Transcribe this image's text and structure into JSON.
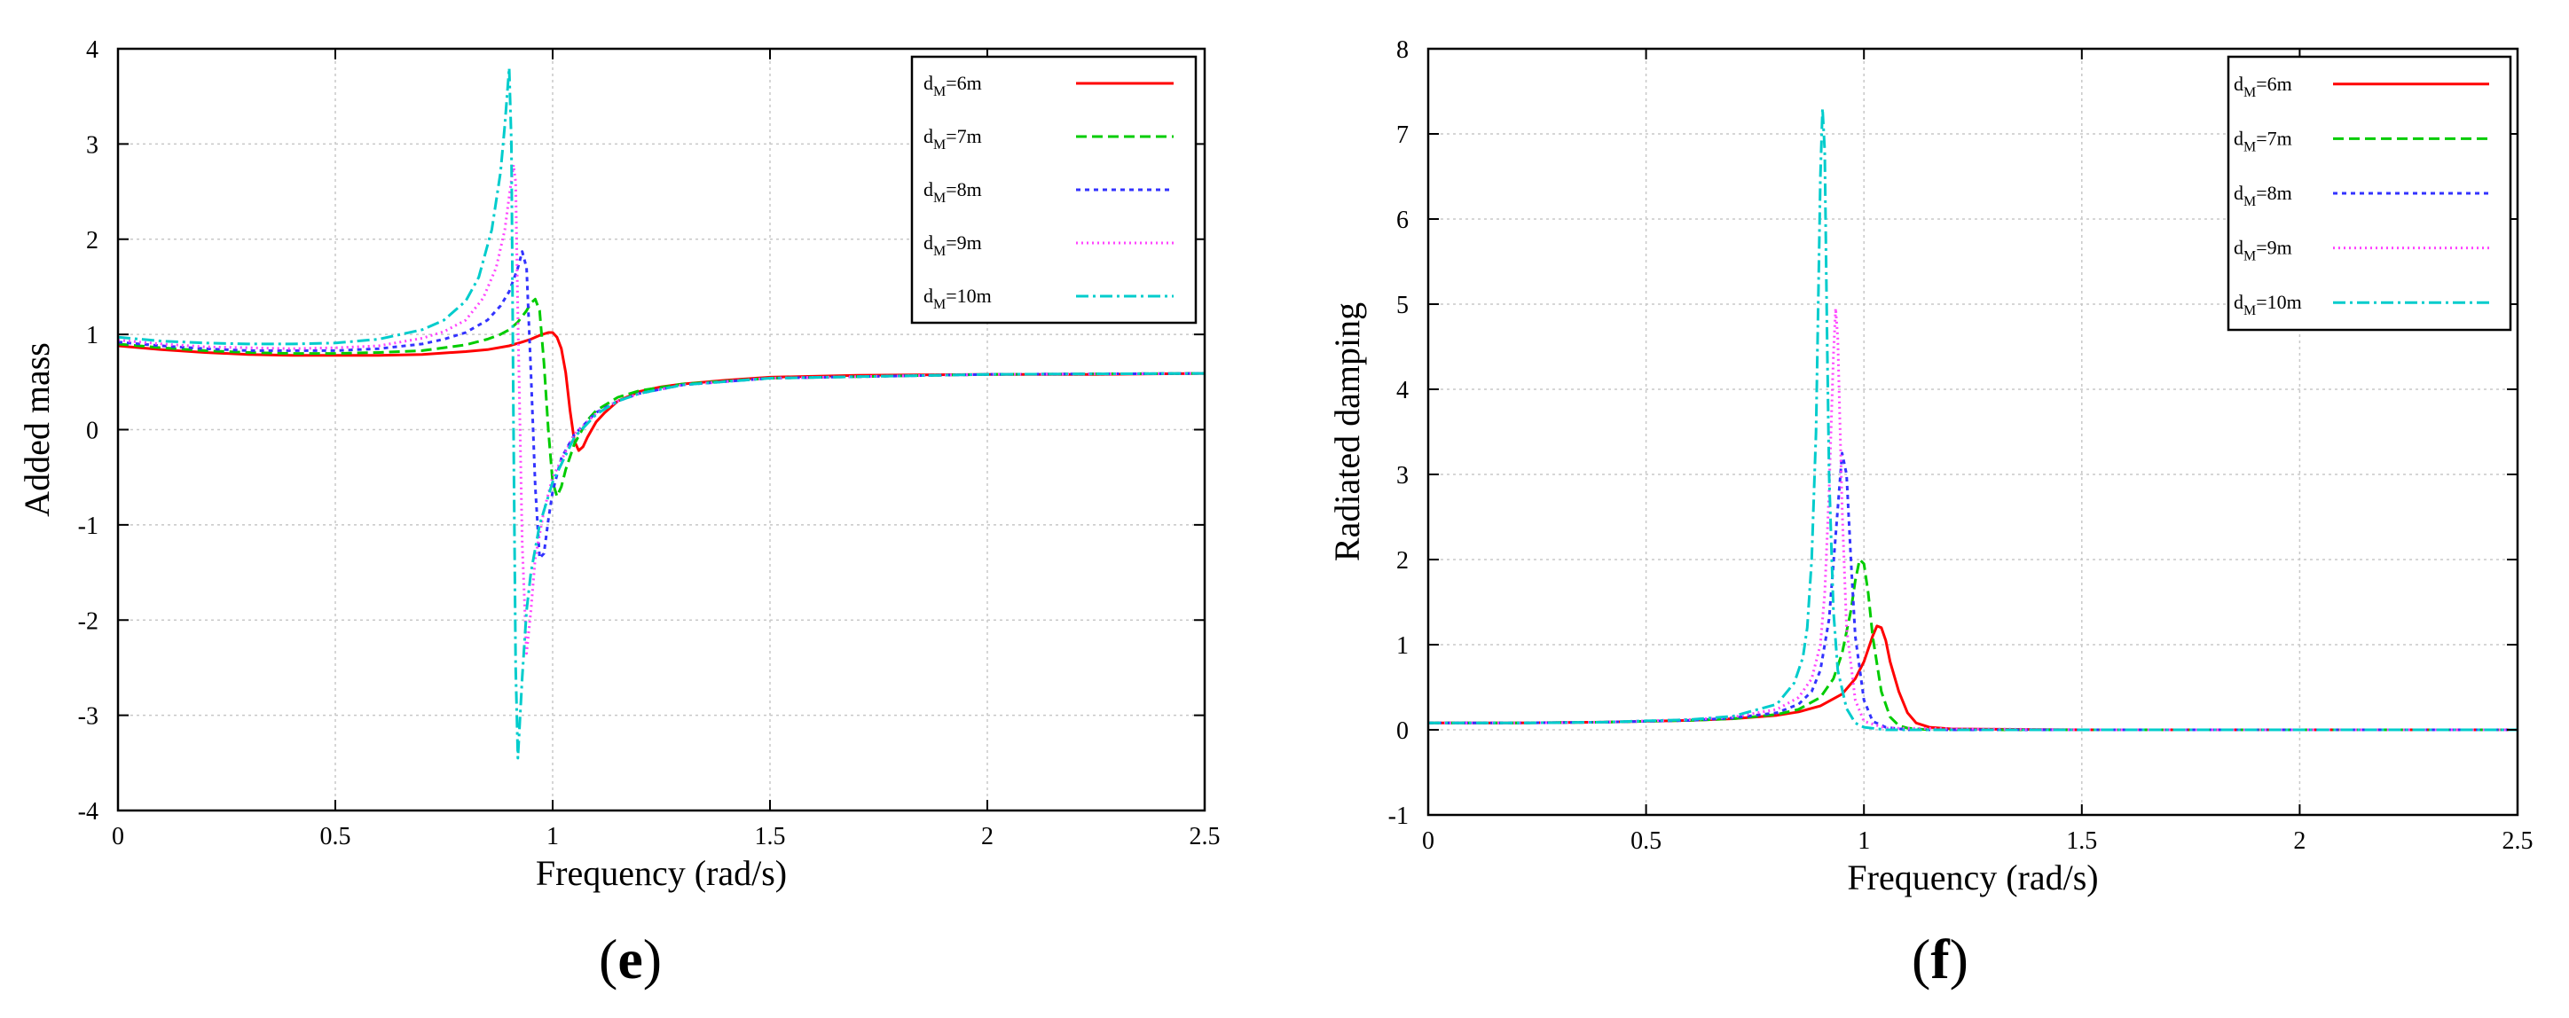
{
  "chart_data": [
    {
      "type": "line",
      "ylabel": "Added mass",
      "xlabel": "Frequency (rad/s)",
      "xlim": [
        0,
        2.5
      ],
      "ylim": [
        -4,
        4
      ],
      "xticks": [
        "0",
        "0.5",
        "1",
        "1.5",
        "2",
        "2.5"
      ],
      "yticks": [
        "-4",
        "-3",
        "-2",
        "-1",
        "0",
        "1",
        "2",
        "3",
        "4"
      ],
      "grid": true,
      "legend_position": "top-right",
      "panel_label": "e",
      "series": [
        {
          "name": "dM=6m",
          "name_main": "d",
          "name_sub": "M",
          "name_rest": "=6m",
          "color": "#ff0000",
          "dash": "",
          "x": [
            0,
            0.1,
            0.2,
            0.3,
            0.4,
            0.5,
            0.6,
            0.7,
            0.8,
            0.85,
            0.9,
            0.93,
            0.95,
            0.97,
            0.99,
            1.0,
            1.01,
            1.02,
            1.03,
            1.04,
            1.05,
            1.06,
            1.07,
            1.08,
            1.1,
            1.12,
            1.15,
            1.2,
            1.25,
            1.3,
            1.4,
            1.5,
            1.7,
            2.0,
            2.25,
            2.5
          ],
          "y": [
            0.88,
            0.84,
            0.81,
            0.79,
            0.78,
            0.78,
            0.78,
            0.79,
            0.82,
            0.84,
            0.88,
            0.92,
            0.95,
            0.99,
            1.02,
            1.02,
            0.97,
            0.85,
            0.6,
            0.2,
            -0.12,
            -0.22,
            -0.18,
            -0.08,
            0.08,
            0.18,
            0.3,
            0.4,
            0.45,
            0.48,
            0.52,
            0.55,
            0.57,
            0.58,
            0.58,
            0.59
          ]
        },
        {
          "name": "dM=7m",
          "name_main": "d",
          "name_sub": "M",
          "name_rest": "=7m",
          "color": "#00cc00",
          "dash": "12,6",
          "x": [
            0,
            0.1,
            0.2,
            0.3,
            0.4,
            0.5,
            0.6,
            0.7,
            0.8,
            0.85,
            0.88,
            0.9,
            0.92,
            0.94,
            0.95,
            0.96,
            0.97,
            0.98,
            0.99,
            1.0,
            1.01,
            1.02,
            1.03,
            1.05,
            1.08,
            1.1,
            1.15,
            1.2,
            1.3,
            1.5,
            2.0,
            2.5
          ],
          "y": [
            0.9,
            0.86,
            0.83,
            0.81,
            0.8,
            0.8,
            0.81,
            0.83,
            0.89,
            0.95,
            1.0,
            1.05,
            1.13,
            1.25,
            1.33,
            1.37,
            1.25,
            0.7,
            0.0,
            -0.55,
            -0.7,
            -0.6,
            -0.42,
            -0.15,
            0.1,
            0.2,
            0.34,
            0.41,
            0.48,
            0.54,
            0.58,
            0.59
          ]
        },
        {
          "name": "dM=8m",
          "name_main": "d",
          "name_sub": "M",
          "name_rest": "=8m",
          "color": "#3333ff",
          "dash": "5,5",
          "x": [
            0,
            0.1,
            0.2,
            0.3,
            0.4,
            0.5,
            0.6,
            0.7,
            0.75,
            0.8,
            0.85,
            0.88,
            0.9,
            0.92,
            0.93,
            0.94,
            0.95,
            0.96,
            0.97,
            0.98,
            0.99,
            1.0,
            1.02,
            1.05,
            1.1,
            1.15,
            1.2,
            1.3,
            1.5,
            2.0,
            2.5
          ],
          "y": [
            0.92,
            0.88,
            0.85,
            0.83,
            0.83,
            0.83,
            0.85,
            0.9,
            0.95,
            1.02,
            1.15,
            1.3,
            1.45,
            1.7,
            1.87,
            1.7,
            0.6,
            -0.6,
            -1.35,
            -1.3,
            -0.95,
            -0.65,
            -0.3,
            -0.05,
            0.18,
            0.3,
            0.38,
            0.47,
            0.54,
            0.58,
            0.59
          ]
        },
        {
          "name": "dM=9m",
          "name_main": "d",
          "name_sub": "M",
          "name_rest": "=9m",
          "color": "#ff44ff",
          "dash": "2,4",
          "x": [
            0,
            0.1,
            0.2,
            0.3,
            0.4,
            0.5,
            0.6,
            0.7,
            0.75,
            0.8,
            0.84,
            0.87,
            0.89,
            0.9,
            0.91,
            0.915,
            0.92,
            0.93,
            0.94,
            0.95,
            0.96,
            0.98,
            1.0,
            1.05,
            1.1,
            1.15,
            1.2,
            1.3,
            1.5,
            2.0,
            2.5
          ],
          "y": [
            0.94,
            0.9,
            0.87,
            0.86,
            0.85,
            0.86,
            0.88,
            0.96,
            1.03,
            1.15,
            1.38,
            1.7,
            2.1,
            2.45,
            2.78,
            2.6,
            1.2,
            -1.2,
            -2.35,
            -1.9,
            -1.35,
            -0.85,
            -0.5,
            -0.05,
            0.17,
            0.3,
            0.38,
            0.47,
            0.54,
            0.58,
            0.59
          ]
        },
        {
          "name": "dM=10m",
          "name_main": "d",
          "name_sub": "M",
          "name_rest": "=10m",
          "color": "#00cccc",
          "dash": "14,5,3,5",
          "x": [
            0,
            0.1,
            0.2,
            0.3,
            0.4,
            0.5,
            0.6,
            0.7,
            0.75,
            0.8,
            0.83,
            0.86,
            0.88,
            0.89,
            0.9,
            0.905,
            0.91,
            0.915,
            0.92,
            0.93,
            0.94,
            0.95,
            0.97,
            1.0,
            1.05,
            1.1,
            1.15,
            1.2,
            1.3,
            1.5,
            2.0,
            2.5
          ],
          "y": [
            0.97,
            0.93,
            0.91,
            0.9,
            0.9,
            0.91,
            0.95,
            1.05,
            1.15,
            1.35,
            1.6,
            2.1,
            2.7,
            3.2,
            3.8,
            3.0,
            0.0,
            -2.5,
            -3.45,
            -2.6,
            -1.9,
            -1.5,
            -1.0,
            -0.55,
            -0.08,
            0.16,
            0.3,
            0.38,
            0.47,
            0.54,
            0.58,
            0.59
          ]
        }
      ]
    },
    {
      "type": "line",
      "ylabel": "Radiated damping",
      "xlabel": "Frequency (rad/s)",
      "xlim": [
        0,
        2.5
      ],
      "ylim": [
        -1,
        8
      ],
      "xticks": [
        "0",
        "0.5",
        "1",
        "1.5",
        "2",
        "2.5"
      ],
      "yticks": [
        "-1",
        "0",
        "1",
        "2",
        "3",
        "4",
        "5",
        "6",
        "7",
        "8"
      ],
      "grid": true,
      "legend_position": "top-right",
      "panel_label": "f",
      "series": [
        {
          "name": "dM=6m",
          "name_main": "d",
          "name_sub": "M",
          "name_rest": "=6m",
          "color": "#ff0000",
          "dash": "",
          "x": [
            0,
            0.2,
            0.4,
            0.6,
            0.7,
            0.8,
            0.85,
            0.9,
            0.95,
            0.98,
            1.0,
            1.01,
            1.02,
            1.03,
            1.04,
            1.05,
            1.06,
            1.08,
            1.1,
            1.12,
            1.15,
            1.2,
            1.5,
            2.0,
            2.5
          ],
          "y": [
            0.08,
            0.08,
            0.09,
            0.11,
            0.13,
            0.17,
            0.21,
            0.28,
            0.42,
            0.6,
            0.8,
            0.95,
            1.1,
            1.22,
            1.2,
            1.05,
            0.8,
            0.45,
            0.2,
            0.08,
            0.03,
            0.01,
            0.0,
            0.0,
            0.0
          ]
        },
        {
          "name": "dM=7m",
          "name_main": "d",
          "name_sub": "M",
          "name_rest": "=7m",
          "color": "#00cc00",
          "dash": "12,6",
          "x": [
            0,
            0.2,
            0.4,
            0.6,
            0.7,
            0.8,
            0.85,
            0.9,
            0.93,
            0.95,
            0.97,
            0.98,
            0.99,
            1.0,
            1.01,
            1.02,
            1.04,
            1.06,
            1.08,
            1.1,
            1.15,
            1.5,
            2.0,
            2.5
          ],
          "y": [
            0.08,
            0.08,
            0.09,
            0.11,
            0.13,
            0.18,
            0.24,
            0.38,
            0.6,
            0.9,
            1.4,
            1.75,
            2.0,
            1.95,
            1.6,
            1.1,
            0.45,
            0.15,
            0.05,
            0.02,
            0.0,
            0.0,
            0.0,
            0.0
          ]
        },
        {
          "name": "dM=8m",
          "name_main": "d",
          "name_sub": "M",
          "name_rest": "=8m",
          "color": "#3333ff",
          "dash": "5,5",
          "x": [
            0,
            0.2,
            0.4,
            0.6,
            0.7,
            0.8,
            0.85,
            0.88,
            0.9,
            0.92,
            0.94,
            0.95,
            0.96,
            0.97,
            0.98,
            1.0,
            1.02,
            1.05,
            1.1,
            1.5,
            2.0,
            2.5
          ],
          "y": [
            0.08,
            0.08,
            0.09,
            0.11,
            0.14,
            0.2,
            0.3,
            0.45,
            0.7,
            1.3,
            2.6,
            3.25,
            3.0,
            2.0,
            1.1,
            0.35,
            0.1,
            0.03,
            0.0,
            0.0,
            0.0,
            0.0
          ]
        },
        {
          "name": "dM=9m",
          "name_main": "d",
          "name_sub": "M",
          "name_rest": "=9m",
          "color": "#ff44ff",
          "dash": "2,4",
          "x": [
            0,
            0.2,
            0.4,
            0.6,
            0.7,
            0.8,
            0.85,
            0.88,
            0.9,
            0.91,
            0.92,
            0.93,
            0.935,
            0.94,
            0.95,
            0.96,
            0.98,
            1.0,
            1.05,
            1.5,
            2.0,
            2.5
          ],
          "y": [
            0.08,
            0.08,
            0.09,
            0.12,
            0.15,
            0.24,
            0.38,
            0.6,
            1.0,
            1.6,
            2.8,
            4.4,
            4.95,
            4.6,
            2.6,
            1.2,
            0.35,
            0.1,
            0.02,
            0.0,
            0.0,
            0.0
          ]
        },
        {
          "name": "dM=10m",
          "name_main": "d",
          "name_sub": "M",
          "name_rest": "=10m",
          "color": "#00cccc",
          "dash": "14,5,3,5",
          "x": [
            0,
            0.2,
            0.4,
            0.6,
            0.7,
            0.8,
            0.84,
            0.86,
            0.87,
            0.88,
            0.89,
            0.9,
            0.905,
            0.91,
            0.915,
            0.92,
            0.93,
            0.94,
            0.96,
            0.98,
            1.0,
            1.05,
            1.5,
            2.0,
            2.5
          ],
          "y": [
            0.08,
            0.08,
            0.09,
            0.12,
            0.16,
            0.3,
            0.55,
            0.85,
            1.2,
            2.0,
            3.5,
            6.5,
            7.3,
            6.8,
            4.8,
            3.0,
            1.4,
            0.7,
            0.25,
            0.08,
            0.03,
            0.0,
            0.0,
            0.0,
            0.0
          ]
        }
      ]
    }
  ]
}
